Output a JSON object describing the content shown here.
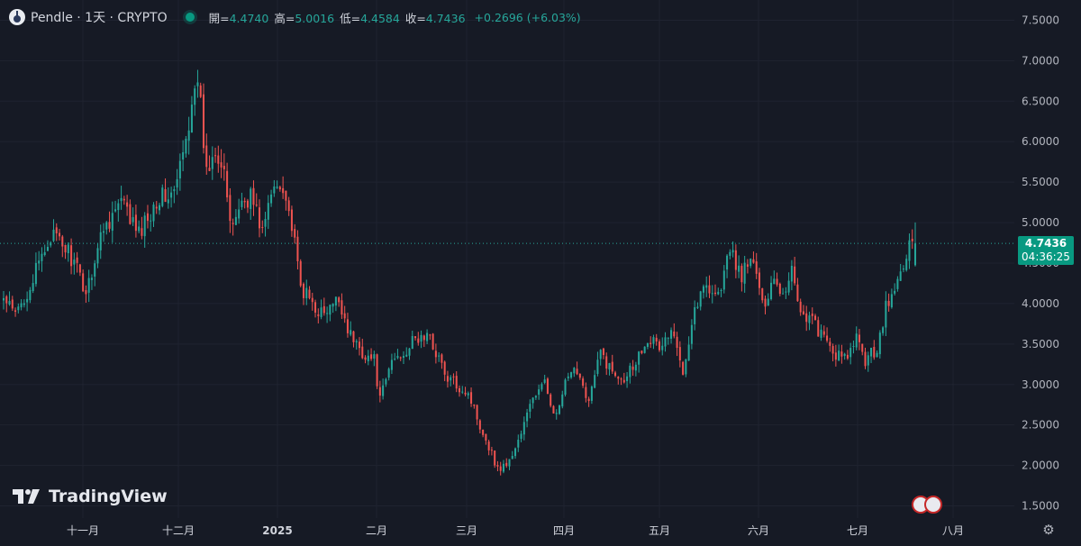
{
  "header": {
    "symbol_title": "Pendle · 1天 · CRYPTO",
    "open_label": "開=",
    "open_value": "4.4740",
    "high_label": "高=",
    "high_value": "5.0016",
    "low_label": "低=",
    "low_value": "4.4584",
    "close_label": "收=",
    "close_value": "4.7436",
    "change": "+0.2696 (+6.03%)"
  },
  "price_tag": {
    "price": "4.7436",
    "countdown": "04:36:25"
  },
  "brand": {
    "name": "TradingView"
  },
  "colors": {
    "background": "#161a25",
    "up": "#26a69a",
    "down": "#ef5350",
    "grid": "#232734",
    "text": "#d1d4dc"
  },
  "icons": [
    "pendle-logo-icon",
    "market-status-icon",
    "tradingview-logo-icon",
    "flag-icons",
    "settings-icon"
  ],
  "chart_data": {
    "type": "candlestick",
    "y_ticks": [
      "7.5000",
      "7.0000",
      "6.5000",
      "6.0000",
      "5.5000",
      "5.0000",
      "4.5000",
      "4.0000",
      "3.5000",
      "3.0000",
      "2.5000",
      "2.0000",
      "1.5000"
    ],
    "ylim": [
      1.35,
      7.75
    ],
    "x_ticks": [
      "十一月",
      "十二月",
      "2025",
      "二月",
      "三月",
      "四月",
      "五月",
      "六月",
      "七月",
      "八月"
    ],
    "x_ticks_bold": [
      false,
      false,
      true,
      false,
      false,
      false,
      false,
      false,
      false,
      false
    ],
    "last_price": 4.7436,
    "anchors": [
      [
        0,
        4.05
      ],
      [
        4,
        3.85
      ],
      [
        10,
        4.3
      ],
      [
        16,
        4.85
      ],
      [
        22,
        4.65
      ],
      [
        28,
        4.15
      ],
      [
        34,
        4.95
      ],
      [
        40,
        5.25
      ],
      [
        46,
        4.85
      ],
      [
        52,
        5.3
      ],
      [
        58,
        5.35
      ],
      [
        62,
        6.0
      ],
      [
        65,
        6.8
      ],
      [
        67,
        6.4
      ],
      [
        69,
        5.6
      ],
      [
        72,
        5.95
      ],
      [
        75,
        5.7
      ],
      [
        77,
        4.9
      ],
      [
        80,
        5.2
      ],
      [
        84,
        5.35
      ],
      [
        88,
        4.9
      ],
      [
        92,
        5.45
      ],
      [
        95,
        5.5
      ],
      [
        98,
        4.95
      ],
      [
        101,
        4.2
      ],
      [
        105,
        4.0
      ],
      [
        109,
        3.85
      ],
      [
        114,
        4.05
      ],
      [
        118,
        3.6
      ],
      [
        122,
        3.4
      ],
      [
        126,
        3.3
      ],
      [
        128,
        2.8
      ],
      [
        132,
        3.3
      ],
      [
        136,
        3.4
      ],
      [
        140,
        3.55
      ],
      [
        144,
        3.6
      ],
      [
        148,
        3.35
      ],
      [
        150,
        3.1
      ],
      [
        154,
        3.0
      ],
      [
        158,
        2.9
      ],
      [
        162,
        2.5
      ],
      [
        166,
        2.15
      ],
      [
        168,
        1.95
      ],
      [
        172,
        2.05
      ],
      [
        176,
        2.4
      ],
      [
        180,
        2.85
      ],
      [
        184,
        3.0
      ],
      [
        188,
        2.6
      ],
      [
        191,
        3.0
      ],
      [
        195,
        3.2
      ],
      [
        199,
        2.8
      ],
      [
        203,
        3.4
      ],
      [
        207,
        3.15
      ],
      [
        211,
        3.1
      ],
      [
        215,
        3.3
      ],
      [
        219,
        3.6
      ],
      [
        223,
        3.45
      ],
      [
        227,
        3.65
      ],
      [
        231,
        3.2
      ],
      [
        235,
        3.95
      ],
      [
        239,
        4.25
      ],
      [
        243,
        4.1
      ],
      [
        247,
        4.65
      ],
      [
        251,
        4.35
      ],
      [
        255,
        4.55
      ],
      [
        258,
        3.95
      ],
      [
        262,
        4.35
      ],
      [
        265,
        4.1
      ],
      [
        268,
        4.45
      ],
      [
        271,
        3.9
      ],
      [
        275,
        3.8
      ],
      [
        279,
        3.55
      ],
      [
        282,
        3.4
      ],
      [
        286,
        3.3
      ],
      [
        290,
        3.55
      ],
      [
        293,
        3.3
      ],
      [
        297,
        3.45
      ],
      [
        300,
        3.95
      ],
      [
        303,
        4.15
      ],
      [
        306,
        4.5
      ],
      [
        308,
        4.75
      ],
      [
        310,
        4.75
      ]
    ]
  }
}
